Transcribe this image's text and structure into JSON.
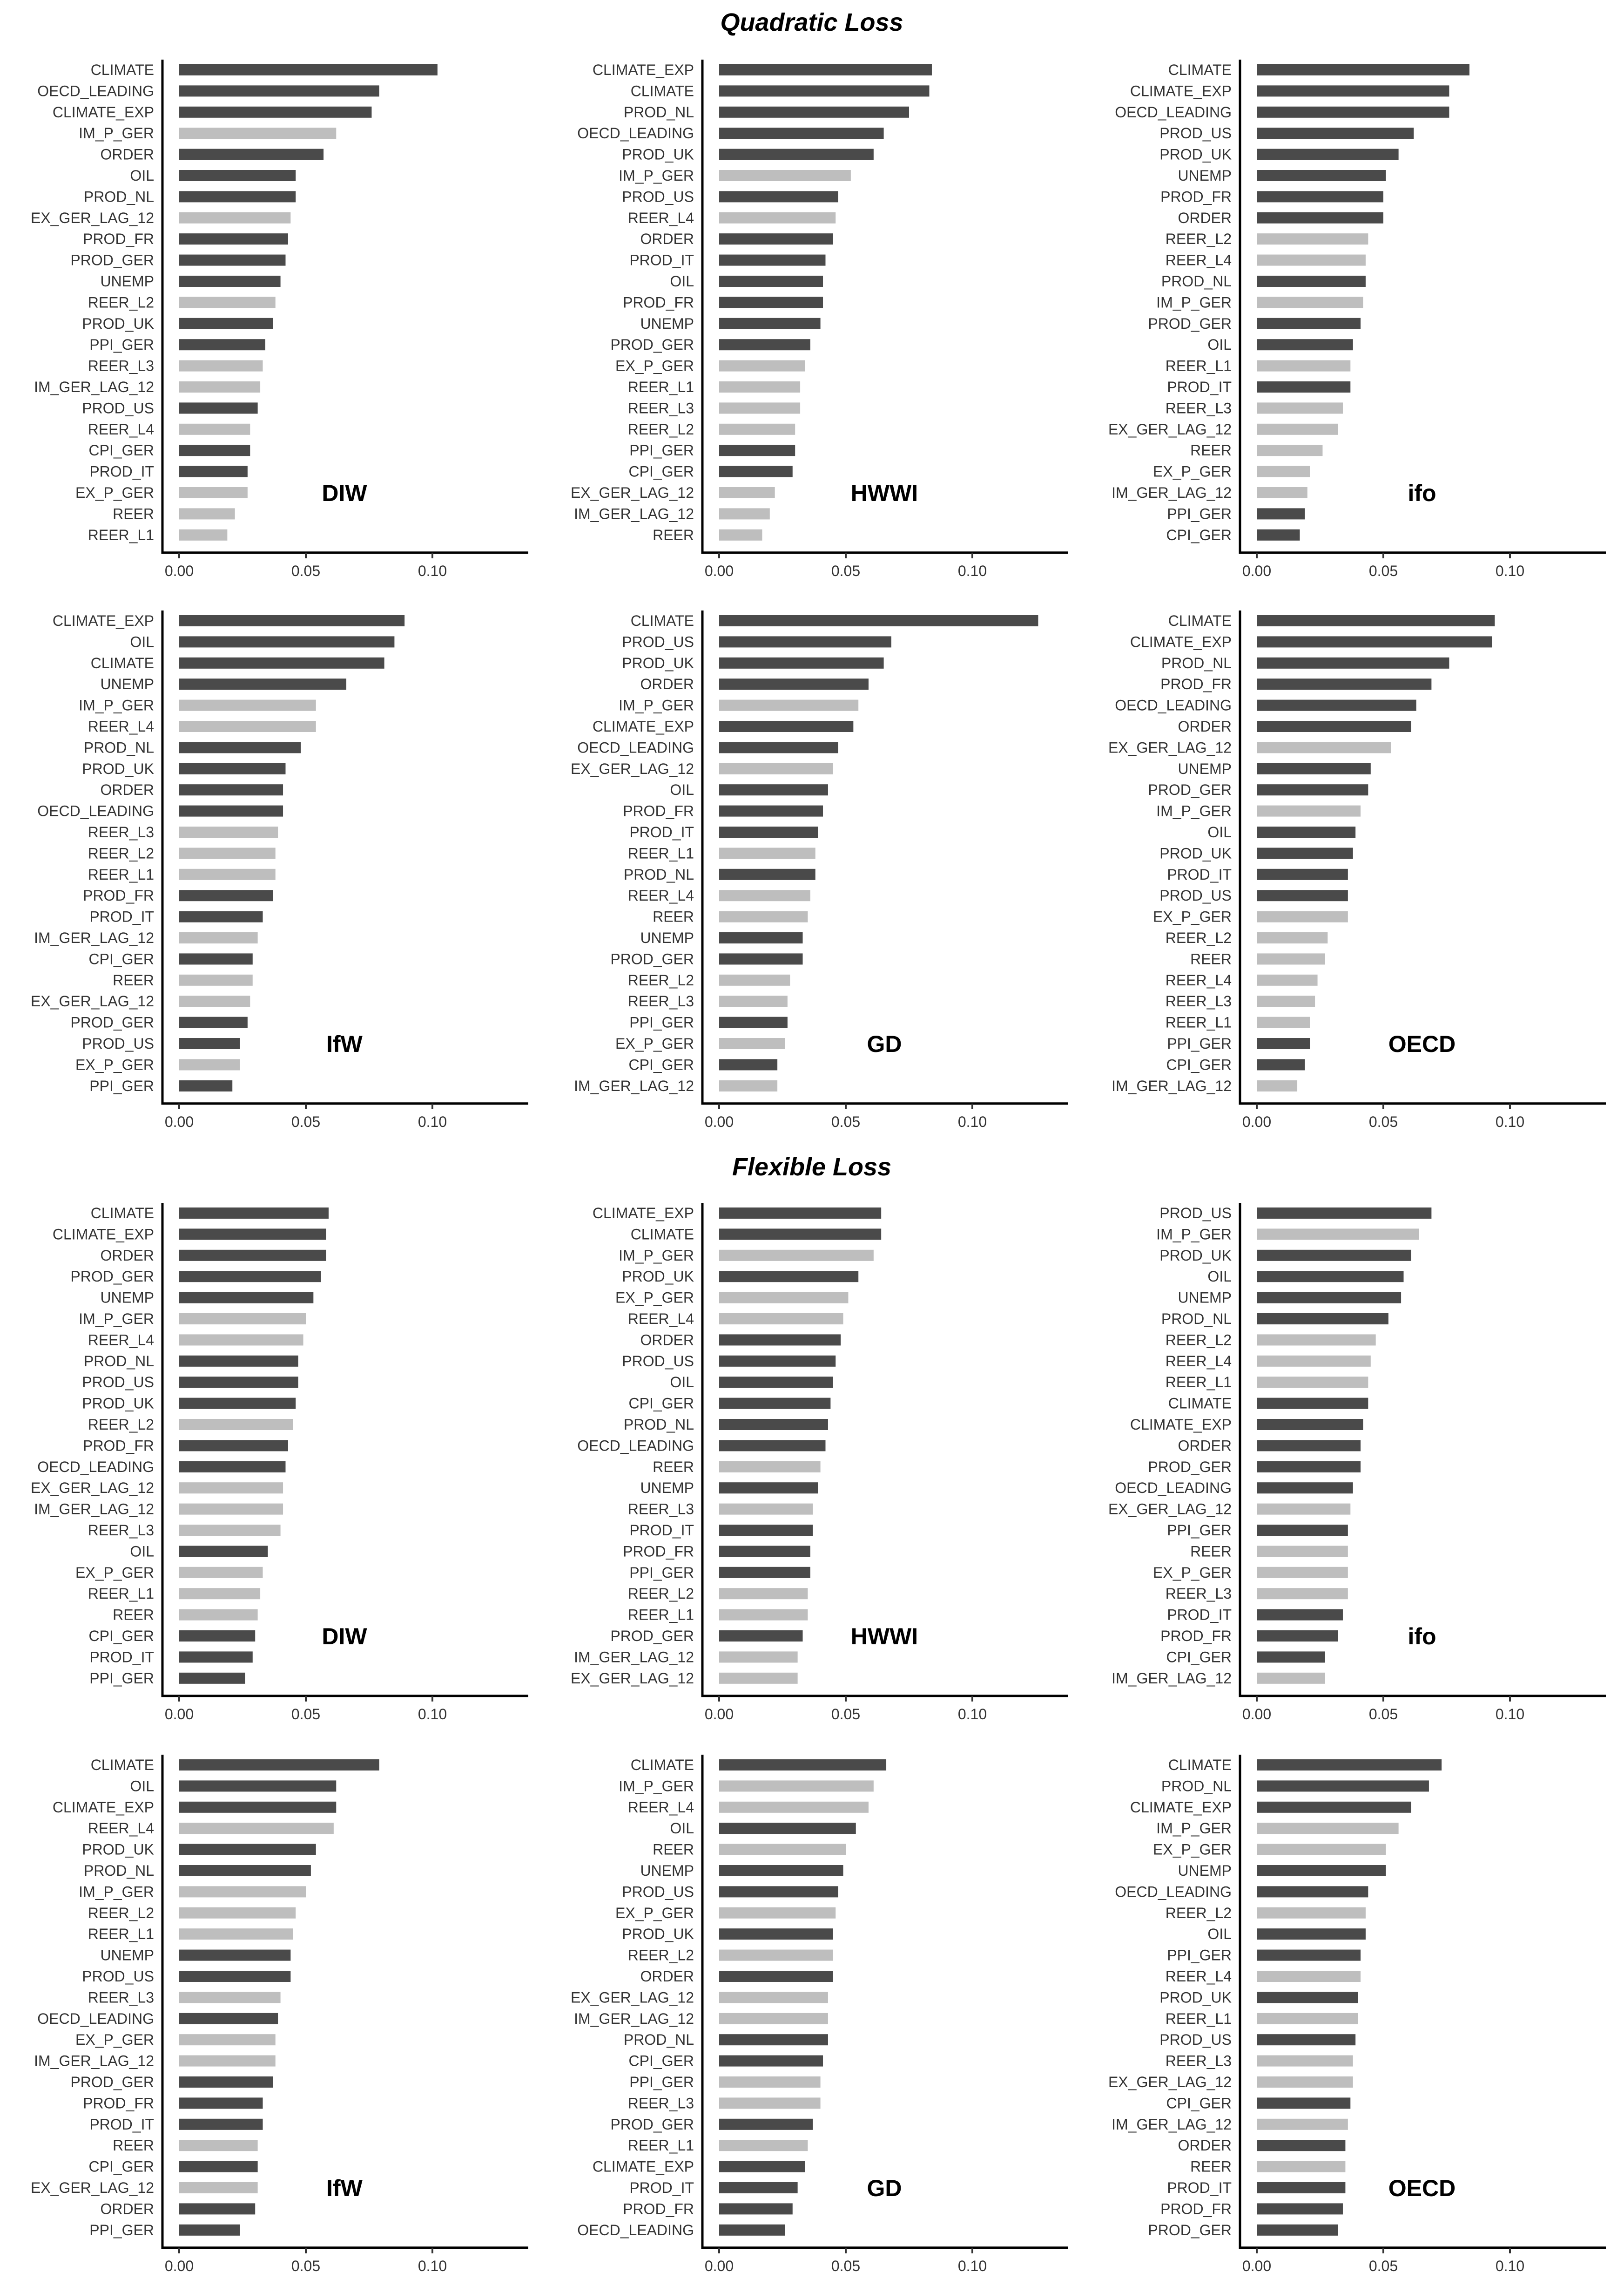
{
  "section_titles": [
    "Quadratic Loss",
    "Flexible Loss"
  ],
  "colors": {
    "dark": "#4a4a4a",
    "light": "#bebebe"
  },
  "chart_data": [
    {
      "type": "bar",
      "orientation": "horizontal",
      "section": "Quadratic Loss",
      "panel_label": "DIW",
      "xlim": [
        0,
        0.135
      ],
      "xticks": [
        "0.00",
        "0.05",
        "0.10"
      ],
      "categories": [
        "CLIMATE",
        "OECD_LEADING",
        "CLIMATE_EXP",
        "IM_P_GER",
        "ORDER",
        "OIL",
        "PROD_NL",
        "EX_GER_LAG_12",
        "PROD_FR",
        "PROD_GER",
        "UNEMP",
        "REER_L2",
        "PROD_UK",
        "PPI_GER",
        "REER_L3",
        "IM_GER_LAG_12",
        "PROD_US",
        "REER_L4",
        "CPI_GER",
        "PROD_IT",
        "EX_P_GER",
        "REER",
        "REER_L1"
      ],
      "values": [
        0.102,
        0.079,
        0.076,
        0.062,
        0.057,
        0.046,
        0.046,
        0.044,
        0.043,
        0.042,
        0.04,
        0.038,
        0.037,
        0.034,
        0.033,
        0.032,
        0.031,
        0.028,
        0.028,
        0.027,
        0.027,
        0.022,
        0.019
      ],
      "shading": [
        "dark",
        "dark",
        "dark",
        "light",
        "dark",
        "dark",
        "dark",
        "light",
        "dark",
        "dark",
        "dark",
        "light",
        "dark",
        "dark",
        "light",
        "light",
        "dark",
        "light",
        "dark",
        "dark",
        "light",
        "light",
        "light"
      ]
    },
    {
      "type": "bar",
      "orientation": "horizontal",
      "section": "Quadratic Loss",
      "panel_label": "HWWI",
      "xlim": [
        0,
        0.135
      ],
      "xticks": [
        "0.00",
        "0.05",
        "0.10"
      ],
      "categories": [
        "CLIMATE_EXP",
        "CLIMATE",
        "PROD_NL",
        "OECD_LEADING",
        "PROD_UK",
        "IM_P_GER",
        "PROD_US",
        "REER_L4",
        "ORDER",
        "PROD_IT",
        "OIL",
        "PROD_FR",
        "UNEMP",
        "PROD_GER",
        "EX_P_GER",
        "REER_L1",
        "REER_L3",
        "REER_L2",
        "PPI_GER",
        "CPI_GER",
        "EX_GER_LAG_12",
        "IM_GER_LAG_12",
        "REER"
      ],
      "values": [
        0.084,
        0.083,
        0.075,
        0.065,
        0.061,
        0.052,
        0.047,
        0.046,
        0.045,
        0.042,
        0.041,
        0.041,
        0.04,
        0.036,
        0.034,
        0.032,
        0.032,
        0.03,
        0.03,
        0.029,
        0.022,
        0.02,
        0.017
      ],
      "shading": [
        "dark",
        "dark",
        "dark",
        "dark",
        "dark",
        "light",
        "dark",
        "light",
        "dark",
        "dark",
        "dark",
        "dark",
        "dark",
        "dark",
        "light",
        "light",
        "light",
        "light",
        "dark",
        "dark",
        "light",
        "light",
        "light"
      ]
    },
    {
      "type": "bar",
      "orientation": "horizontal",
      "section": "Quadratic Loss",
      "panel_label": "ifo",
      "xlim": [
        0,
        0.135
      ],
      "xticks": [
        "0.00",
        "0.05",
        "0.10"
      ],
      "categories": [
        "CLIMATE",
        "CLIMATE_EXP",
        "OECD_LEADING",
        "PROD_US",
        "PROD_UK",
        "UNEMP",
        "PROD_FR",
        "ORDER",
        "REER_L2",
        "REER_L4",
        "PROD_NL",
        "IM_P_GER",
        "PROD_GER",
        "OIL",
        "REER_L1",
        "PROD_IT",
        "REER_L3",
        "EX_GER_LAG_12",
        "REER",
        "EX_P_GER",
        "IM_GER_LAG_12",
        "PPI_GER",
        "CPI_GER"
      ],
      "values": [
        0.084,
        0.076,
        0.076,
        0.062,
        0.056,
        0.051,
        0.05,
        0.05,
        0.044,
        0.043,
        0.043,
        0.042,
        0.041,
        0.038,
        0.037,
        0.037,
        0.034,
        0.032,
        0.026,
        0.021,
        0.02,
        0.019,
        0.017
      ],
      "shading": [
        "dark",
        "dark",
        "dark",
        "dark",
        "dark",
        "dark",
        "dark",
        "dark",
        "light",
        "light",
        "dark",
        "light",
        "dark",
        "dark",
        "light",
        "dark",
        "light",
        "light",
        "light",
        "light",
        "light",
        "dark",
        "dark"
      ]
    },
    {
      "type": "bar",
      "orientation": "horizontal",
      "section": "Quadratic Loss",
      "panel_label": "IfW",
      "xlim": [
        0,
        0.135
      ],
      "xticks": [
        "0.00",
        "0.05",
        "0.10"
      ],
      "categories": [
        "CLIMATE_EXP",
        "OIL",
        "CLIMATE",
        "UNEMP",
        "IM_P_GER",
        "REER_L4",
        "PROD_NL",
        "PROD_UK",
        "ORDER",
        "OECD_LEADING",
        "REER_L3",
        "REER_L2",
        "REER_L1",
        "PROD_FR",
        "PROD_IT",
        "IM_GER_LAG_12",
        "CPI_GER",
        "REER",
        "EX_GER_LAG_12",
        "PROD_GER",
        "PROD_US",
        "EX_P_GER",
        "PPI_GER"
      ],
      "values": [
        0.089,
        0.085,
        0.081,
        0.066,
        0.054,
        0.054,
        0.048,
        0.042,
        0.041,
        0.041,
        0.039,
        0.038,
        0.038,
        0.037,
        0.033,
        0.031,
        0.029,
        0.029,
        0.028,
        0.027,
        0.024,
        0.024,
        0.021
      ],
      "shading": [
        "dark",
        "dark",
        "dark",
        "dark",
        "light",
        "light",
        "dark",
        "dark",
        "dark",
        "dark",
        "light",
        "light",
        "light",
        "dark",
        "dark",
        "light",
        "dark",
        "light",
        "light",
        "dark",
        "dark",
        "light",
        "dark"
      ]
    },
    {
      "type": "bar",
      "orientation": "horizontal",
      "section": "Quadratic Loss",
      "panel_label": "GD",
      "xlim": [
        0,
        0.135
      ],
      "xticks": [
        "0.00",
        "0.05",
        "0.10"
      ],
      "categories": [
        "CLIMATE",
        "PROD_US",
        "PROD_UK",
        "ORDER",
        "IM_P_GER",
        "CLIMATE_EXP",
        "OECD_LEADING",
        "EX_GER_LAG_12",
        "OIL",
        "PROD_FR",
        "PROD_IT",
        "REER_L1",
        "PROD_NL",
        "REER_L4",
        "REER",
        "UNEMP",
        "PROD_GER",
        "REER_L2",
        "REER_L3",
        "PPI_GER",
        "EX_P_GER",
        "CPI_GER",
        "IM_GER_LAG_12"
      ],
      "values": [
        0.126,
        0.068,
        0.065,
        0.059,
        0.055,
        0.053,
        0.047,
        0.045,
        0.043,
        0.041,
        0.039,
        0.038,
        0.038,
        0.036,
        0.035,
        0.033,
        0.033,
        0.028,
        0.027,
        0.027,
        0.026,
        0.023,
        0.023
      ],
      "shading": [
        "dark",
        "dark",
        "dark",
        "dark",
        "light",
        "dark",
        "dark",
        "light",
        "dark",
        "dark",
        "dark",
        "light",
        "dark",
        "light",
        "light",
        "dark",
        "dark",
        "light",
        "light",
        "dark",
        "light",
        "dark",
        "light"
      ]
    },
    {
      "type": "bar",
      "orientation": "horizontal",
      "section": "Quadratic Loss",
      "panel_label": "OECD",
      "xlim": [
        0,
        0.135
      ],
      "xticks": [
        "0.00",
        "0.05",
        "0.10"
      ],
      "categories": [
        "CLIMATE",
        "CLIMATE_EXP",
        "PROD_NL",
        "PROD_FR",
        "OECD_LEADING",
        "ORDER",
        "EX_GER_LAG_12",
        "UNEMP",
        "PROD_GER",
        "IM_P_GER",
        "OIL",
        "PROD_UK",
        "PROD_IT",
        "PROD_US",
        "EX_P_GER",
        "REER_L2",
        "REER",
        "REER_L4",
        "REER_L3",
        "REER_L1",
        "PPI_GER",
        "CPI_GER",
        "IM_GER_LAG_12"
      ],
      "values": [
        0.094,
        0.093,
        0.076,
        0.069,
        0.063,
        0.061,
        0.053,
        0.045,
        0.044,
        0.041,
        0.039,
        0.038,
        0.036,
        0.036,
        0.036,
        0.028,
        0.027,
        0.024,
        0.023,
        0.021,
        0.021,
        0.019,
        0.016
      ],
      "shading": [
        "dark",
        "dark",
        "dark",
        "dark",
        "dark",
        "dark",
        "light",
        "dark",
        "dark",
        "light",
        "dark",
        "dark",
        "dark",
        "dark",
        "light",
        "light",
        "light",
        "light",
        "light",
        "light",
        "dark",
        "dark",
        "light"
      ]
    },
    {
      "type": "bar",
      "orientation": "horizontal",
      "section": "Flexible Loss",
      "panel_label": "DIW",
      "xlim": [
        0,
        0.135
      ],
      "xticks": [
        "0.00",
        "0.05",
        "0.10"
      ],
      "categories": [
        "CLIMATE",
        "CLIMATE_EXP",
        "ORDER",
        "PROD_GER",
        "UNEMP",
        "IM_P_GER",
        "REER_L4",
        "PROD_NL",
        "PROD_US",
        "PROD_UK",
        "REER_L2",
        "PROD_FR",
        "OECD_LEADING",
        "EX_GER_LAG_12",
        "IM_GER_LAG_12",
        "REER_L3",
        "OIL",
        "EX_P_GER",
        "REER_L1",
        "REER",
        "CPI_GER",
        "PROD_IT",
        "PPI_GER"
      ],
      "values": [
        0.059,
        0.058,
        0.058,
        0.056,
        0.053,
        0.05,
        0.049,
        0.047,
        0.047,
        0.046,
        0.045,
        0.043,
        0.042,
        0.041,
        0.041,
        0.04,
        0.035,
        0.033,
        0.032,
        0.031,
        0.03,
        0.029,
        0.026
      ],
      "shading": [
        "dark",
        "dark",
        "dark",
        "dark",
        "dark",
        "light",
        "light",
        "dark",
        "dark",
        "dark",
        "light",
        "dark",
        "dark",
        "light",
        "light",
        "light",
        "dark",
        "light",
        "light",
        "light",
        "dark",
        "dark",
        "dark"
      ]
    },
    {
      "type": "bar",
      "orientation": "horizontal",
      "section": "Flexible Loss",
      "panel_label": "HWWI",
      "xlim": [
        0,
        0.135
      ],
      "xticks": [
        "0.00",
        "0.05",
        "0.10"
      ],
      "categories": [
        "CLIMATE_EXP",
        "CLIMATE",
        "IM_P_GER",
        "PROD_UK",
        "EX_P_GER",
        "REER_L4",
        "ORDER",
        "PROD_US",
        "OIL",
        "CPI_GER",
        "PROD_NL",
        "OECD_LEADING",
        "REER",
        "UNEMP",
        "REER_L3",
        "PROD_IT",
        "PROD_FR",
        "PPI_GER",
        "REER_L2",
        "REER_L1",
        "PROD_GER",
        "IM_GER_LAG_12",
        "EX_GER_LAG_12"
      ],
      "values": [
        0.064,
        0.064,
        0.061,
        0.055,
        0.051,
        0.049,
        0.048,
        0.046,
        0.045,
        0.044,
        0.043,
        0.042,
        0.04,
        0.039,
        0.037,
        0.037,
        0.036,
        0.036,
        0.035,
        0.035,
        0.033,
        0.031,
        0.031
      ],
      "shading": [
        "dark",
        "dark",
        "light",
        "dark",
        "light",
        "light",
        "dark",
        "dark",
        "dark",
        "dark",
        "dark",
        "dark",
        "light",
        "dark",
        "light",
        "dark",
        "dark",
        "dark",
        "light",
        "light",
        "dark",
        "light",
        "light"
      ]
    },
    {
      "type": "bar",
      "orientation": "horizontal",
      "section": "Flexible Loss",
      "panel_label": "ifo",
      "xlim": [
        0,
        0.135
      ],
      "xticks": [
        "0.00",
        "0.05",
        "0.10"
      ],
      "categories": [
        "PROD_US",
        "IM_P_GER",
        "PROD_UK",
        "OIL",
        "UNEMP",
        "PROD_NL",
        "REER_L2",
        "REER_L4",
        "REER_L1",
        "CLIMATE",
        "CLIMATE_EXP",
        "ORDER",
        "PROD_GER",
        "OECD_LEADING",
        "EX_GER_LAG_12",
        "PPI_GER",
        "REER",
        "EX_P_GER",
        "REER_L3",
        "PROD_IT",
        "PROD_FR",
        "CPI_GER",
        "IM_GER_LAG_12"
      ],
      "values": [
        0.069,
        0.064,
        0.061,
        0.058,
        0.057,
        0.052,
        0.047,
        0.045,
        0.044,
        0.044,
        0.042,
        0.041,
        0.041,
        0.038,
        0.037,
        0.036,
        0.036,
        0.036,
        0.036,
        0.034,
        0.032,
        0.027,
        0.027
      ],
      "shading": [
        "dark",
        "light",
        "dark",
        "dark",
        "dark",
        "dark",
        "light",
        "light",
        "light",
        "dark",
        "dark",
        "dark",
        "dark",
        "dark",
        "light",
        "dark",
        "light",
        "light",
        "light",
        "dark",
        "dark",
        "dark",
        "light"
      ]
    },
    {
      "type": "bar",
      "orientation": "horizontal",
      "section": "Flexible Loss",
      "panel_label": "IfW",
      "xlim": [
        0,
        0.135
      ],
      "xticks": [
        "0.00",
        "0.05",
        "0.10"
      ],
      "categories": [
        "CLIMATE",
        "OIL",
        "CLIMATE_EXP",
        "REER_L4",
        "PROD_UK",
        "PROD_NL",
        "IM_P_GER",
        "REER_L2",
        "REER_L1",
        "UNEMP",
        "PROD_US",
        "REER_L3",
        "OECD_LEADING",
        "EX_P_GER",
        "IM_GER_LAG_12",
        "PROD_GER",
        "PROD_FR",
        "PROD_IT",
        "REER",
        "CPI_GER",
        "EX_GER_LAG_12",
        "ORDER",
        "PPI_GER"
      ],
      "values": [
        0.079,
        0.062,
        0.062,
        0.061,
        0.054,
        0.052,
        0.05,
        0.046,
        0.045,
        0.044,
        0.044,
        0.04,
        0.039,
        0.038,
        0.038,
        0.037,
        0.033,
        0.033,
        0.031,
        0.031,
        0.031,
        0.03,
        0.024
      ],
      "shading": [
        "dark",
        "dark",
        "dark",
        "light",
        "dark",
        "dark",
        "light",
        "light",
        "light",
        "dark",
        "dark",
        "light",
        "dark",
        "light",
        "light",
        "dark",
        "dark",
        "dark",
        "light",
        "dark",
        "light",
        "dark",
        "dark"
      ]
    },
    {
      "type": "bar",
      "orientation": "horizontal",
      "section": "Flexible Loss",
      "panel_label": "GD",
      "xlim": [
        0,
        0.135
      ],
      "xticks": [
        "0.00",
        "0.05",
        "0.10"
      ],
      "categories": [
        "CLIMATE",
        "IM_P_GER",
        "REER_L4",
        "OIL",
        "REER",
        "UNEMP",
        "PROD_US",
        "EX_P_GER",
        "PROD_UK",
        "REER_L2",
        "ORDER",
        "EX_GER_LAG_12",
        "IM_GER_LAG_12",
        "PROD_NL",
        "CPI_GER",
        "PPI_GER",
        "REER_L3",
        "PROD_GER",
        "REER_L1",
        "CLIMATE_EXP",
        "PROD_IT",
        "PROD_FR",
        "OECD_LEADING"
      ],
      "values": [
        0.066,
        0.061,
        0.059,
        0.054,
        0.05,
        0.049,
        0.047,
        0.046,
        0.045,
        0.045,
        0.045,
        0.043,
        0.043,
        0.043,
        0.041,
        0.04,
        0.04,
        0.037,
        0.035,
        0.034,
        0.031,
        0.029,
        0.026
      ],
      "shading": [
        "dark",
        "light",
        "light",
        "dark",
        "light",
        "dark",
        "dark",
        "light",
        "dark",
        "light",
        "dark",
        "light",
        "light",
        "dark",
        "dark",
        "light",
        "light",
        "dark",
        "light",
        "dark",
        "dark",
        "dark",
        "dark"
      ]
    },
    {
      "type": "bar",
      "orientation": "horizontal",
      "section": "Flexible Loss",
      "panel_label": "OECD",
      "xlim": [
        0,
        0.135
      ],
      "xticks": [
        "0.00",
        "0.05",
        "0.10"
      ],
      "categories": [
        "CLIMATE",
        "PROD_NL",
        "CLIMATE_EXP",
        "IM_P_GER",
        "EX_P_GER",
        "UNEMP",
        "OECD_LEADING",
        "REER_L2",
        "OIL",
        "PPI_GER",
        "REER_L4",
        "PROD_UK",
        "REER_L1",
        "PROD_US",
        "REER_L3",
        "EX_GER_LAG_12",
        "CPI_GER",
        "IM_GER_LAG_12",
        "ORDER",
        "REER",
        "PROD_IT",
        "PROD_FR",
        "PROD_GER"
      ],
      "values": [
        0.073,
        0.068,
        0.061,
        0.056,
        0.051,
        0.051,
        0.044,
        0.043,
        0.043,
        0.041,
        0.041,
        0.04,
        0.04,
        0.039,
        0.038,
        0.038,
        0.037,
        0.036,
        0.035,
        0.035,
        0.035,
        0.034,
        0.032
      ],
      "shading": [
        "dark",
        "dark",
        "dark",
        "light",
        "light",
        "dark",
        "dark",
        "light",
        "dark",
        "dark",
        "light",
        "dark",
        "light",
        "dark",
        "light",
        "light",
        "dark",
        "light",
        "dark",
        "light",
        "dark",
        "dark",
        "dark"
      ]
    }
  ]
}
